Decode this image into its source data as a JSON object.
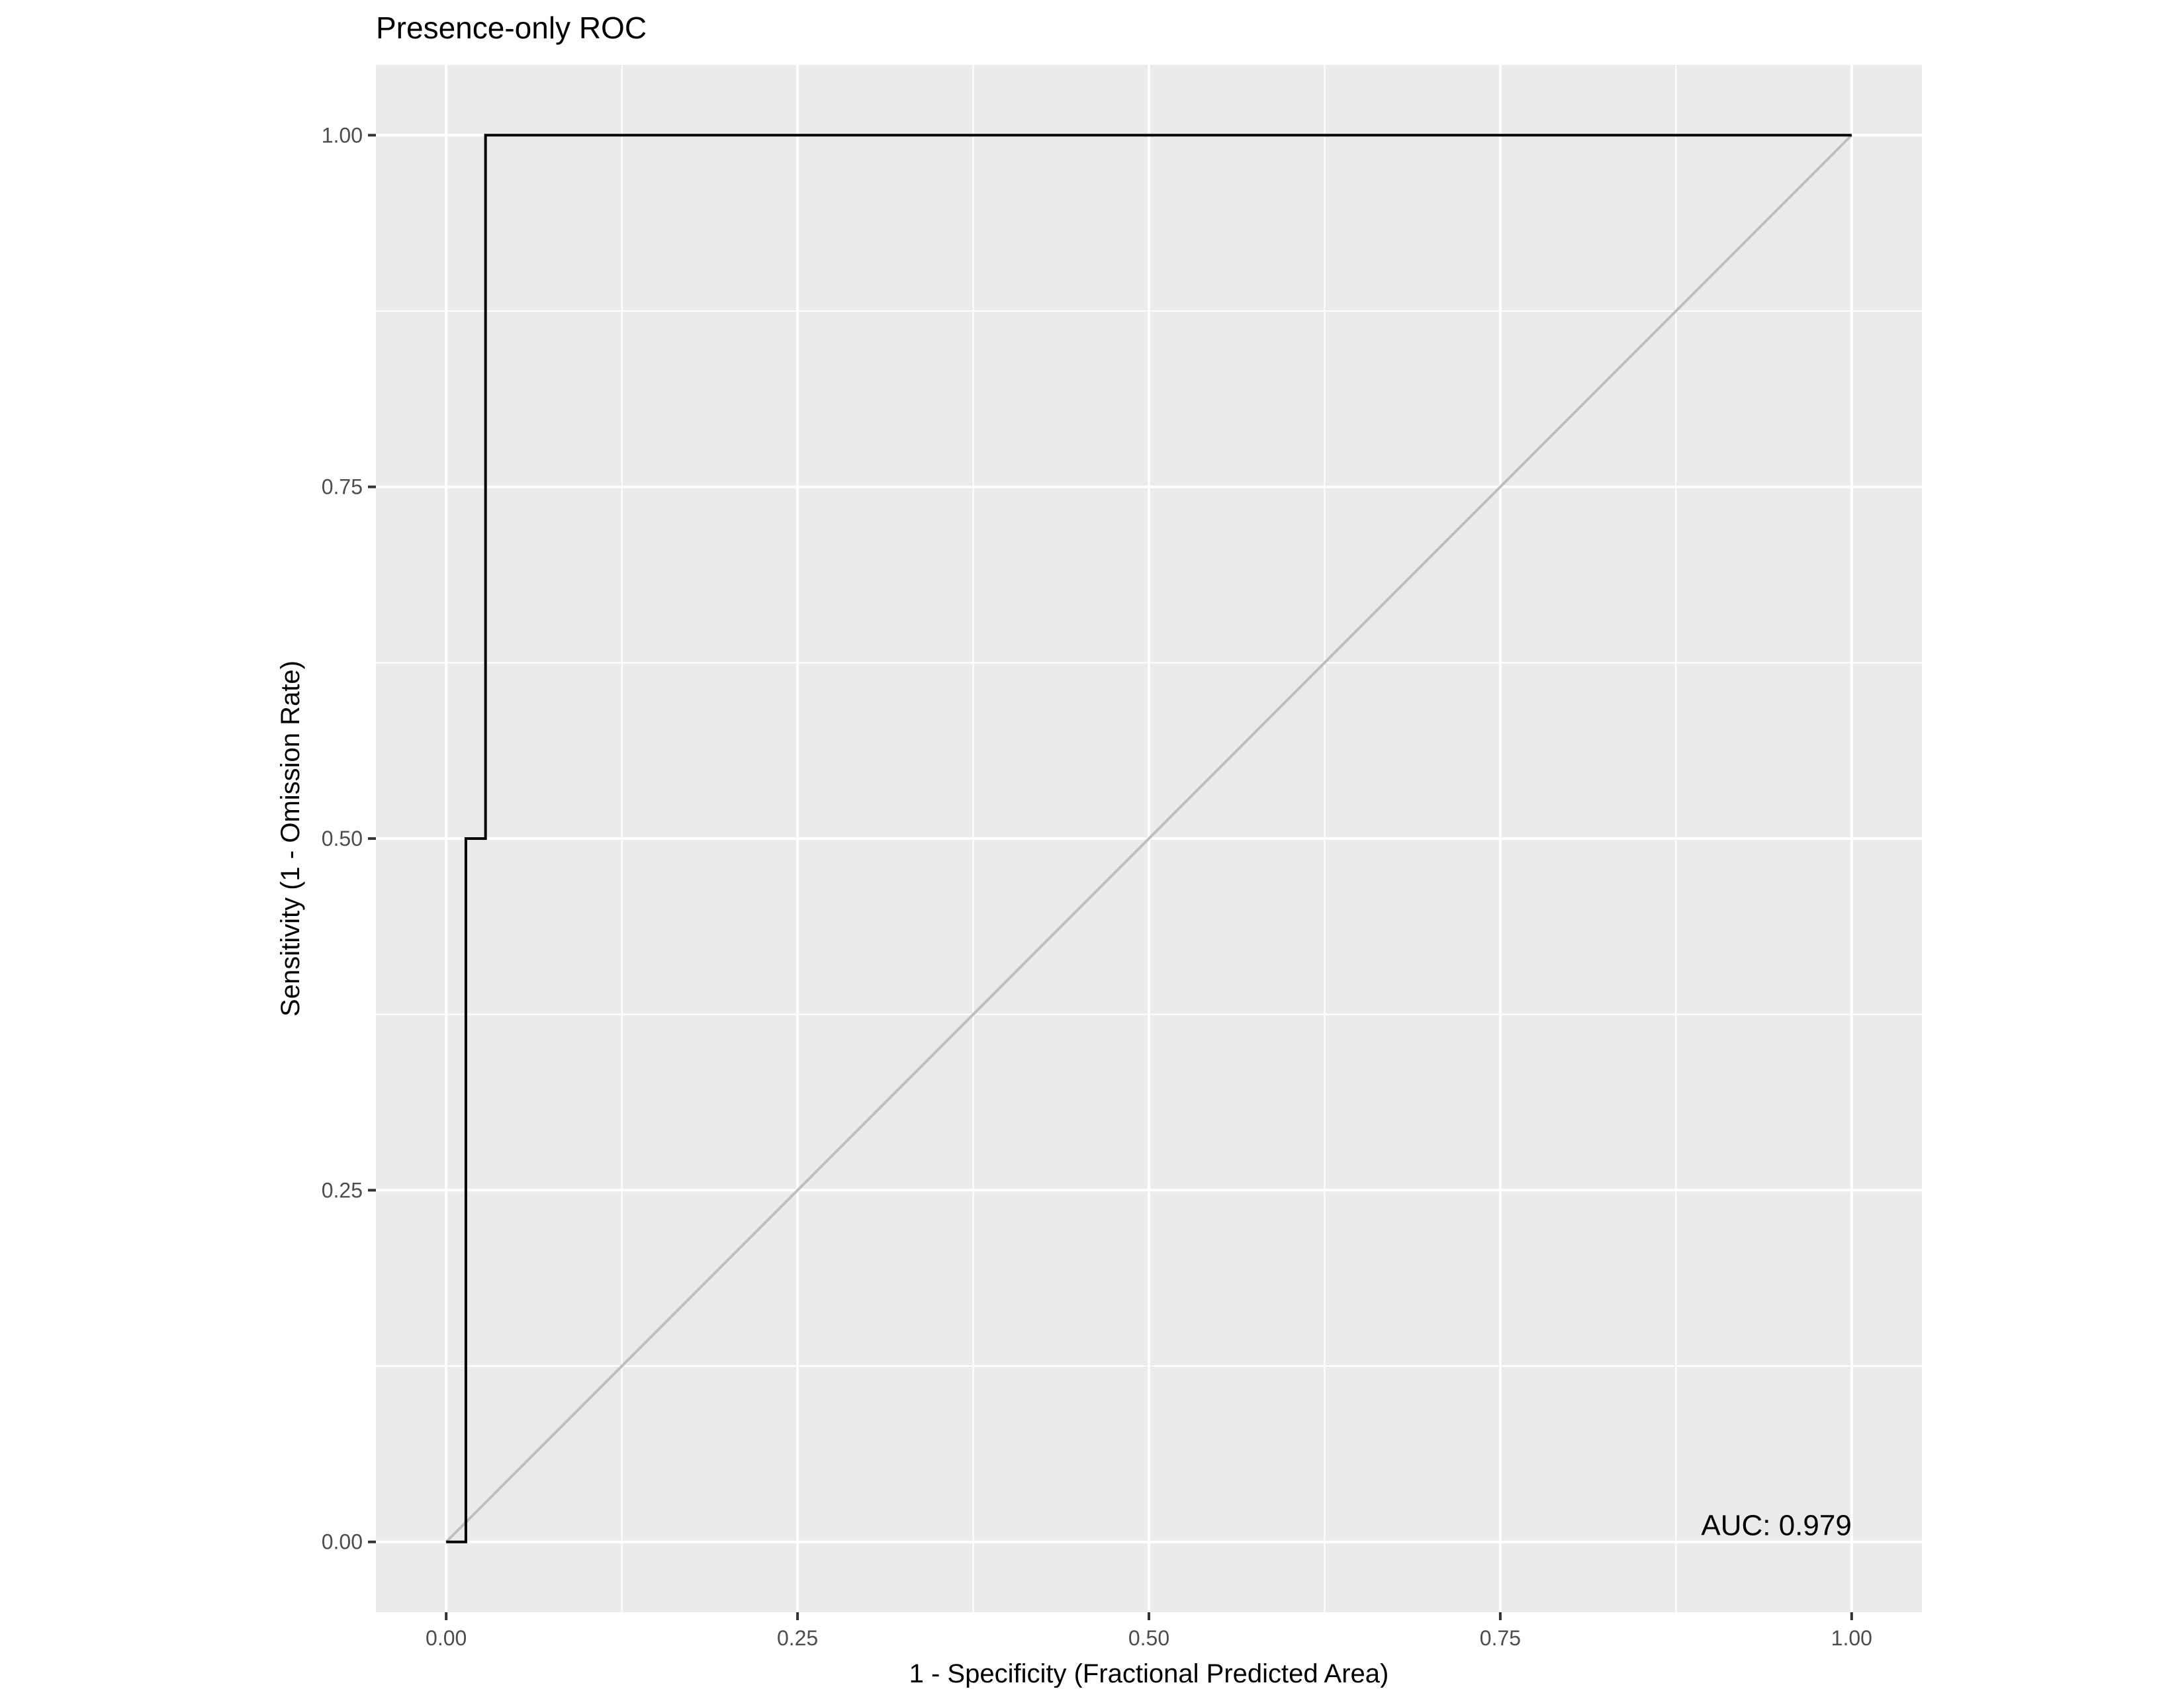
{
  "chart_data": {
    "type": "line",
    "title": "Presence-only ROC",
    "xlabel": "1 - Specificity (Fractional Predicted Area)",
    "ylabel": "Sensitivity (1 - Omission Rate)",
    "xlim": [
      -0.05,
      1.05
    ],
    "ylim": [
      -0.05,
      1.05
    ],
    "x_ticks": [
      0,
      0.25,
      0.5,
      0.75,
      1
    ],
    "x_tick_labels": [
      "0.00",
      "0.25",
      "0.50",
      "0.75",
      "1.00"
    ],
    "y_ticks": [
      0,
      0.25,
      0.5,
      0.75,
      1
    ],
    "y_tick_labels": [
      "0.00",
      "0.25",
      "0.50",
      "0.75",
      "1.00"
    ],
    "grid": true,
    "legend": "none",
    "series": [
      {
        "values": [
          {
            "x": 0,
            "y": 0
          },
          {
            "x": 0.014,
            "y": 0
          },
          {
            "x": 0.014,
            "y": 0.5
          },
          {
            "x": 0.028,
            "y": 0.5
          },
          {
            "x": 0.028,
            "y": 1
          },
          {
            "x": 1,
            "y": 1
          }
        ],
        "color": "#000000"
      },
      {
        "values": [
          {
            "x": 0,
            "y": 0
          },
          {
            "x": 1,
            "y": 1
          }
        ],
        "color": "#bebebe"
      }
    ],
    "annotations": [
      {
        "text": "AUC: 0.979",
        "x": 1,
        "y": 0,
        "anchor": "bottom-right"
      }
    ],
    "colors": {
      "panel_background": "#ebebeb",
      "grid_line": "#ffffff",
      "tick_text": "#4d4d4d",
      "tick_mark": "#333333"
    }
  }
}
